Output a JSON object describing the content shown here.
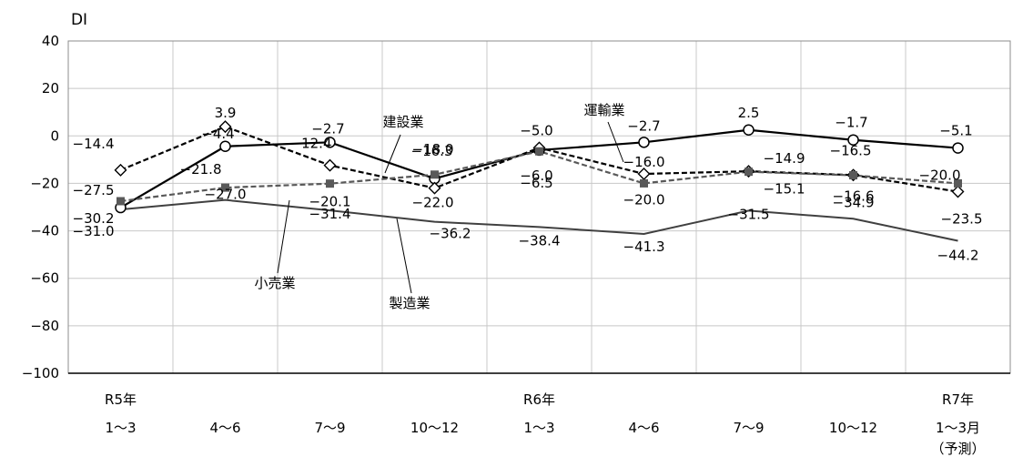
{
  "chart_data": {
    "type": "line",
    "ylabel": "DI",
    "ylim": [
      -100,
      40
    ],
    "yticks": [
      "40",
      "20",
      "0",
      "−20",
      "−40",
      "−60",
      "−80",
      "−100"
    ],
    "grid": "both",
    "categories": [
      {
        "top": "R5年",
        "bottom": "1～3",
        "extra": ""
      },
      {
        "top": "",
        "bottom": "4～6",
        "extra": ""
      },
      {
        "top": "",
        "bottom": "7～9",
        "extra": ""
      },
      {
        "top": "",
        "bottom": "10～12",
        "extra": ""
      },
      {
        "top": "R6年",
        "bottom": "1～3",
        "extra": ""
      },
      {
        "top": "",
        "bottom": "4～6",
        "extra": ""
      },
      {
        "top": "",
        "bottom": "7～9",
        "extra": ""
      },
      {
        "top": "",
        "bottom": "10～12",
        "extra": ""
      },
      {
        "top": "R7年",
        "bottom": "1～3月",
        "extra": "（予測）"
      }
    ],
    "series": [
      {
        "name": "建設業",
        "color": "#000000",
        "dash": "solid",
        "marker": "circle-open",
        "values": [
          -30.2,
          -4.4,
          -2.7,
          -18.0,
          -6.0,
          -2.7,
          2.5,
          -1.7,
          -5.1
        ],
        "labels": [
          "−30.2",
          "−4.4",
          "−2.7",
          "−18.0",
          "−6.0",
          "−2.7",
          "2.5",
          "−1.7",
          "−5.1"
        ]
      },
      {
        "name": "運輸業",
        "color": "#000000",
        "dash": "dashed",
        "marker": "diamond-open",
        "values": [
          -14.4,
          3.9,
          -12.4,
          -22.0,
          -5.0,
          -16.0,
          -14.9,
          -16.5,
          -23.5
        ],
        "labels": [
          "−14.4",
          "3.9",
          "−12.4",
          "−22.0",
          "−5.0",
          "−16.0",
          "−14.9",
          "−16.5",
          "−23.5"
        ]
      },
      {
        "name": "小売業",
        "color": "#595959",
        "dash": "dashed",
        "marker": "square-filled",
        "values": [
          -27.5,
          -21.8,
          -20.1,
          -16.3,
          -6.5,
          -20.0,
          -15.1,
          -16.6,
          -20.0
        ],
        "labels": [
          "−27.5",
          "−21.8",
          "−20.1",
          "−16.3",
          "−6.5",
          "−20.0",
          "−15.1",
          "−16.6",
          "−20.0"
        ]
      },
      {
        "name": "製造業",
        "color": "#404040",
        "dash": "solid",
        "marker": "none",
        "values": [
          -31.0,
          -27.0,
          -31.4,
          -36.2,
          -38.4,
          -41.3,
          -31.5,
          -34.9,
          -44.2
        ],
        "labels": [
          "−31.0",
          "−27.0",
          "−31.4",
          "−36.2",
          "−38.4",
          "−41.3",
          "−31.5",
          "−34.9",
          "−44.2"
        ]
      }
    ]
  }
}
